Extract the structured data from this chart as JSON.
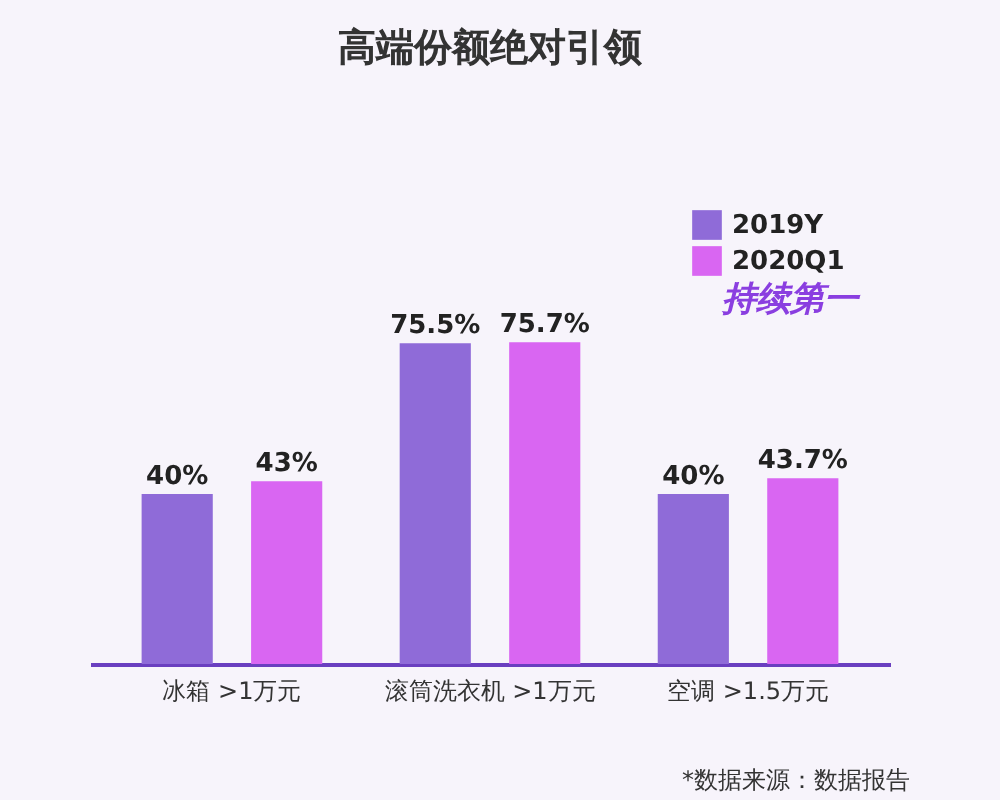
{
  "chart_data": {
    "type": "bar",
    "title": "高端份额绝对引领",
    "categories": [
      "冰箱 >1万元",
      "滚筒洗衣机 >1万元",
      "空调 >1.5万元"
    ],
    "series": [
      {
        "name": "2019Y",
        "color": "#8f6bd8",
        "values": [
          40,
          75.5,
          40
        ],
        "value_labels": [
          "40%",
          "75.5%",
          "40%"
        ]
      },
      {
        "name": "2020Q1",
        "color": "#d966f2",
        "values": [
          43,
          75.7,
          43.7
        ],
        "value_labels": [
          "43%",
          "75.7%",
          "43.7%"
        ]
      }
    ],
    "data_labels": true,
    "legend": "top right",
    "annotations": [
      "持续第一",
      "*数据来源：数据报告"
    ]
  }
}
